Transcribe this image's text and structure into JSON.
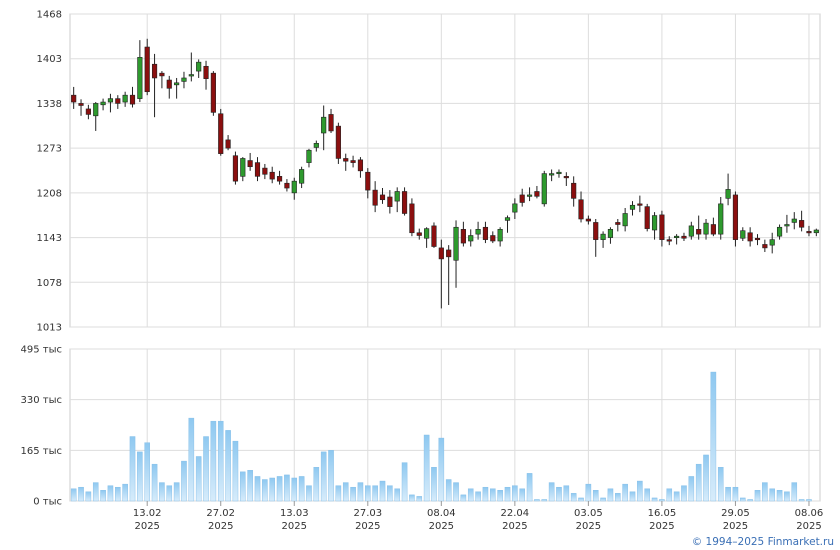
{
  "copyright": "© 1994–2025 Finmarket.ru",
  "colors": {
    "up": "#2e9a2e",
    "down": "#8b0f0f",
    "volume_top": "#8ec8f0",
    "volume_bottom": "#d7ecfb",
    "grid": "#dddddd"
  },
  "chart_data": [
    {
      "type": "candlestick",
      "title": "",
      "ylim": [
        1013,
        1468
      ],
      "y_ticks": [
        "1468",
        "1403",
        "1338",
        "1273",
        "1208",
        "1143",
        "1078",
        "1013"
      ],
      "x_ticks": [
        {
          "day": "13.02",
          "year": "2025",
          "index": 10
        },
        {
          "day": "27.02",
          "year": "2025",
          "index": 20
        },
        {
          "day": "13.03",
          "year": "2025",
          "index": 30
        },
        {
          "day": "27.03",
          "year": "2025",
          "index": 40
        },
        {
          "day": "08.04",
          "year": "2025",
          "index": 50
        },
        {
          "day": "22.04",
          "year": "2025",
          "index": 60
        },
        {
          "day": "03.05",
          "year": "2025",
          "index": 70
        },
        {
          "day": "16.05",
          "year": "2025",
          "index": 80
        },
        {
          "day": "29.05",
          "year": "2025",
          "index": 90
        },
        {
          "day": "08.06",
          "year": "2025",
          "index": 100
        }
      ],
      "ohlc": [
        [
          1350,
          1362,
          1330,
          1340
        ],
        [
          1338,
          1344,
          1320,
          1335
        ],
        [
          1330,
          1336,
          1315,
          1322
        ],
        [
          1320,
          1340,
          1298,
          1338
        ],
        [
          1336,
          1345,
          1328,
          1340
        ],
        [
          1340,
          1352,
          1325,
          1345
        ],
        [
          1345,
          1350,
          1330,
          1338
        ],
        [
          1340,
          1355,
          1333,
          1350
        ],
        [
          1350,
          1362,
          1332,
          1337
        ],
        [
          1345,
          1430,
          1340,
          1405
        ],
        [
          1420,
          1432,
          1350,
          1355
        ],
        [
          1395,
          1410,
          1318,
          1375
        ],
        [
          1382,
          1385,
          1360,
          1378
        ],
        [
          1372,
          1378,
          1345,
          1360
        ],
        [
          1365,
          1375,
          1345,
          1368
        ],
        [
          1370,
          1384,
          1360,
          1375
        ],
        [
          1380,
          1412,
          1370,
          1380
        ],
        [
          1385,
          1402,
          1375,
          1398
        ],
        [
          1392,
          1400,
          1358,
          1374
        ],
        [
          1382,
          1385,
          1320,
          1325
        ],
        [
          1323,
          1330,
          1262,
          1265
        ],
        [
          1285,
          1292,
          1270,
          1273
        ],
        [
          1262,
          1268,
          1220,
          1225
        ],
        [
          1232,
          1260,
          1225,
          1258
        ],
        [
          1255,
          1266,
          1240,
          1246
        ],
        [
          1252,
          1260,
          1225,
          1232
        ],
        [
          1244,
          1250,
          1228,
          1235
        ],
        [
          1238,
          1246,
          1222,
          1228
        ],
        [
          1232,
          1240,
          1220,
          1225
        ],
        [
          1222,
          1228,
          1210,
          1215
        ],
        [
          1208,
          1230,
          1198,
          1225
        ],
        [
          1222,
          1246,
          1215,
          1242
        ],
        [
          1252,
          1272,
          1245,
          1270
        ],
        [
          1274,
          1284,
          1268,
          1280
        ],
        [
          1295,
          1335,
          1270,
          1318
        ],
        [
          1322,
          1330,
          1295,
          1298
        ],
        [
          1305,
          1310,
          1250,
          1258
        ],
        [
          1258,
          1265,
          1240,
          1254
        ],
        [
          1255,
          1262,
          1245,
          1252
        ],
        [
          1256,
          1260,
          1230,
          1240
        ],
        [
          1238,
          1244,
          1200,
          1212
        ],
        [
          1212,
          1225,
          1180,
          1190
        ],
        [
          1205,
          1215,
          1192,
          1198
        ],
        [
          1202,
          1212,
          1178,
          1188
        ],
        [
          1196,
          1216,
          1180,
          1210
        ],
        [
          1210,
          1216,
          1175,
          1178
        ],
        [
          1192,
          1200,
          1145,
          1150
        ],
        [
          1150,
          1156,
          1140,
          1146
        ],
        [
          1142,
          1158,
          1128,
          1156
        ],
        [
          1160,
          1165,
          1128,
          1130
        ],
        [
          1128,
          1140,
          1040,
          1112
        ],
        [
          1125,
          1132,
          1045,
          1115
        ],
        [
          1110,
          1168,
          1070,
          1158
        ],
        [
          1155,
          1166,
          1130,
          1135
        ],
        [
          1138,
          1155,
          1130,
          1146
        ],
        [
          1148,
          1166,
          1140,
          1155
        ],
        [
          1158,
          1166,
          1135,
          1140
        ],
        [
          1146,
          1152,
          1135,
          1138
        ],
        [
          1138,
          1158,
          1130,
          1155
        ],
        [
          1168,
          1175,
          1150,
          1172
        ],
        [
          1180,
          1200,
          1170,
          1192
        ],
        [
          1205,
          1214,
          1188,
          1194
        ],
        [
          1204,
          1216,
          1196,
          1205
        ],
        [
          1210,
          1218,
          1200,
          1203
        ],
        [
          1192,
          1240,
          1188,
          1236
        ],
        [
          1234,
          1242,
          1225,
          1236
        ],
        [
          1238,
          1242,
          1230,
          1238
        ],
        [
          1232,
          1238,
          1218,
          1230
        ],
        [
          1222,
          1232,
          1188,
          1200
        ],
        [
          1198,
          1210,
          1165,
          1170
        ],
        [
          1170,
          1175,
          1162,
          1167
        ],
        [
          1165,
          1170,
          1115,
          1140
        ],
        [
          1140,
          1152,
          1128,
          1148
        ],
        [
          1143,
          1158,
          1134,
          1155
        ],
        [
          1165,
          1170,
          1152,
          1162
        ],
        [
          1160,
          1186,
          1152,
          1178
        ],
        [
          1184,
          1196,
          1175,
          1190
        ],
        [
          1192,
          1204,
          1180,
          1190
        ],
        [
          1188,
          1192,
          1152,
          1156
        ],
        [
          1154,
          1180,
          1140,
          1175
        ],
        [
          1176,
          1182,
          1130,
          1140
        ],
        [
          1140,
          1145,
          1132,
          1138
        ],
        [
          1143,
          1148,
          1133,
          1145
        ],
        [
          1145,
          1150,
          1138,
          1142
        ],
        [
          1145,
          1166,
          1140,
          1160
        ],
        [
          1155,
          1175,
          1140,
          1148
        ],
        [
          1148,
          1170,
          1140,
          1164
        ],
        [
          1162,
          1172,
          1145,
          1148
        ],
        [
          1148,
          1202,
          1140,
          1192
        ],
        [
          1200,
          1236,
          1190,
          1213
        ],
        [
          1205,
          1210,
          1130,
          1140
        ],
        [
          1142,
          1158,
          1138,
          1153
        ],
        [
          1150,
          1158,
          1130,
          1138
        ],
        [
          1142,
          1148,
          1132,
          1140
        ],
        [
          1133,
          1140,
          1122,
          1128
        ],
        [
          1132,
          1150,
          1120,
          1140
        ],
        [
          1145,
          1162,
          1140,
          1158
        ],
        [
          1160,
          1176,
          1150,
          1162
        ],
        [
          1165,
          1180,
          1155,
          1170
        ],
        [
          1168,
          1182,
          1152,
          1158
        ],
        [
          1152,
          1160,
          1145,
          1150
        ],
        [
          1150,
          1156,
          1145,
          1154
        ]
      ]
    },
    {
      "type": "bar",
      "title": "",
      "ylim": [
        0,
        495
      ],
      "y_ticks": [
        "495 тыс",
        "330 тыс",
        "165 тыс",
        "0 тыс"
      ],
      "values": [
        40,
        45,
        30,
        60,
        35,
        50,
        45,
        55,
        210,
        160,
        190,
        120,
        60,
        50,
        60,
        130,
        270,
        145,
        210,
        260,
        260,
        230,
        195,
        95,
        100,
        80,
        70,
        75,
        80,
        85,
        75,
        80,
        50,
        110,
        160,
        165,
        50,
        60,
        45,
        60,
        50,
        50,
        65,
        50,
        40,
        125,
        20,
        15,
        215,
        110,
        205,
        70,
        60,
        20,
        40,
        30,
        45,
        40,
        35,
        45,
        50,
        40,
        90,
        5,
        5,
        60,
        45,
        50,
        25,
        10,
        55,
        35,
        10,
        40,
        25,
        55,
        30,
        65,
        40,
        10,
        5,
        40,
        30,
        50,
        80,
        120,
        150,
        420,
        110,
        45,
        45,
        10,
        5,
        35,
        60,
        40,
        35,
        30,
        60,
        5,
        5
      ]
    }
  ]
}
